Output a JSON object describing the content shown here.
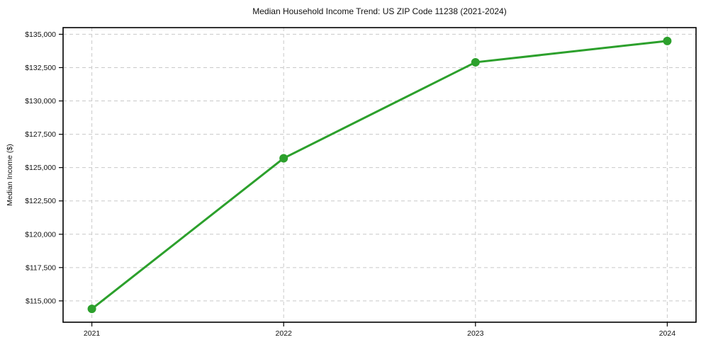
{
  "chart_data": {
    "type": "line",
    "title": "Median Household Income Trend: US ZIP Code 11238 (2021-2024)",
    "xlabel": "",
    "ylabel": "Median Income ($)",
    "x": [
      2021,
      2022,
      2023,
      2024
    ],
    "x_tick_labels": [
      "2021",
      "2022",
      "2023",
      "2024"
    ],
    "values": [
      114400,
      125700,
      132900,
      134500
    ],
    "y_ticks": [
      115000,
      117500,
      120000,
      122500,
      125000,
      127500,
      130000,
      132500,
      135000
    ],
    "y_tick_labels": [
      "$115,000",
      "$117,500",
      "$120,000",
      "$122,500",
      "$125,000",
      "$127,500",
      "$130,000",
      "$132,500",
      "$135,000"
    ],
    "xlim": [
      2020.85,
      2024.15
    ],
    "ylim": [
      113400,
      135500
    ],
    "grid": true,
    "grid_style": "dashed",
    "legend": false,
    "line_color": "#2ca02c",
    "marker": "circle",
    "grid_color": "#c9c9c9",
    "axis_color": "#000000"
  }
}
